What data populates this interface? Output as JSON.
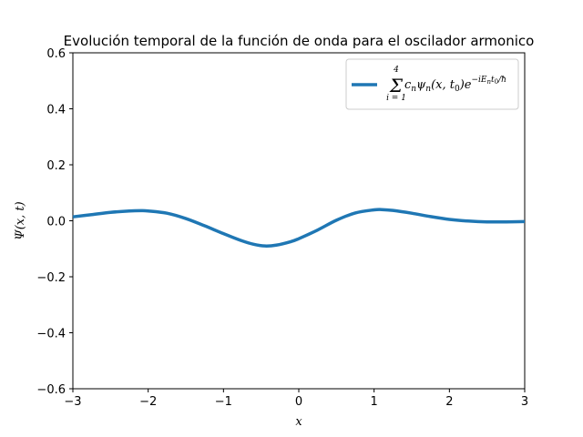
{
  "chart_data": {
    "type": "line",
    "title": "Evolución temporal de la función de onda para el oscilador armonico",
    "xlabel": "x",
    "ylabel": "Ψ(x, t)",
    "xlim": [
      -3,
      3
    ],
    "ylim": [
      -0.6,
      0.6
    ],
    "xticks": [
      -3,
      -2,
      -1,
      0,
      1,
      2,
      3
    ],
    "yticks": [
      -0.6,
      -0.4,
      -0.2,
      0.0,
      0.2,
      0.4,
      0.6
    ],
    "xtick_labels": [
      "−3",
      "−2",
      "−1",
      "0",
      "1",
      "2",
      "3"
    ],
    "ytick_labels": [
      "−0.6",
      "−0.4",
      "−0.2",
      "0.0",
      "0.2",
      "0.4",
      "0.6"
    ],
    "grid": false,
    "legend_position": "top-right",
    "series": [
      {
        "name": "Σ_{i=1}^{4} c_n ψ_n(x, t_0) e^{−iE_n t_0/ħ}",
        "color": "#1f77b4",
        "x": [
          -3.0,
          -2.75,
          -2.5,
          -2.25,
          -2.1,
          -2.0,
          -1.75,
          -1.5,
          -1.25,
          -1.0,
          -0.75,
          -0.6,
          -0.45,
          -0.3,
          -0.1,
          0.0,
          0.25,
          0.5,
          0.75,
          1.0,
          1.1,
          1.25,
          1.5,
          1.75,
          2.0,
          2.25,
          2.5,
          2.75,
          3.0
        ],
        "y": [
          0.014,
          0.022,
          0.03,
          0.035,
          0.036,
          0.035,
          0.027,
          0.008,
          -0.018,
          -0.046,
          -0.072,
          -0.084,
          -0.09,
          -0.087,
          -0.074,
          -0.064,
          -0.033,
          0.002,
          0.028,
          0.039,
          0.04,
          0.037,
          0.027,
          0.015,
          0.005,
          -0.001,
          -0.004,
          -0.004,
          -0.003
        ]
      }
    ]
  }
}
